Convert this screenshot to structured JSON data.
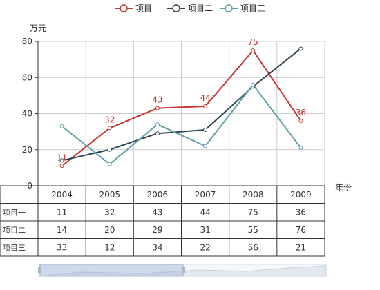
{
  "chart_data": {
    "type": "line",
    "categories": [
      "2004",
      "2005",
      "2006",
      "2007",
      "2008",
      "2009"
    ],
    "series": [
      {
        "name": "项目一",
        "values": [
          11,
          32,
          43,
          44,
          75,
          36
        ],
        "color": "#c23531",
        "labels_shown": true
      },
      {
        "name": "项目二",
        "values": [
          14,
          20,
          29,
          31,
          55,
          76
        ],
        "color": "#2f4554",
        "labels_shown": false
      },
      {
        "name": "项目三",
        "values": [
          33,
          12,
          34,
          22,
          56,
          21
        ],
        "color": "#61a0a8",
        "labels_shown": false
      }
    ],
    "ylabel": "万元",
    "xlabel": "年份",
    "ylim": [
      0,
      80
    ],
    "yticks": [
      "0",
      "20",
      "40",
      "60",
      "80"
    ],
    "grid": true,
    "legend_position": "top-center",
    "data_table": true,
    "data_zoom_slider": true
  }
}
